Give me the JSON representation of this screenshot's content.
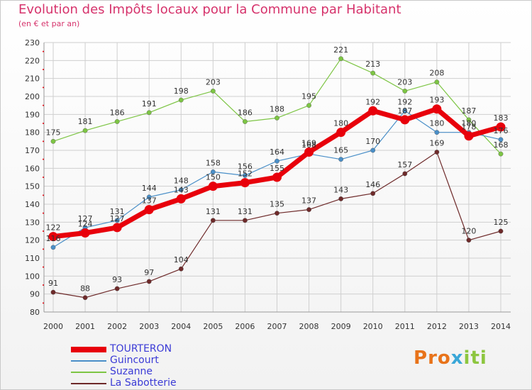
{
  "header": {
    "title": "Evolution des Impôts locaux pour la Commune par Habitant",
    "subtitle": "(en € et par an)"
  },
  "logo": {
    "text": "Proxiti",
    "colors": [
      "#e8731a",
      "#3aa7d8",
      "#8dc63f"
    ]
  },
  "colors": {
    "title": "#d6336c",
    "legend_text": "#3b3bd6",
    "grid": "#cfcfcf"
  },
  "chart_data": {
    "type": "line",
    "title": "Evolution des Impôts locaux pour la Commune par Habitant",
    "subtitle": "(en € et par an)",
    "xlabel": "",
    "ylabel": "",
    "ylim": [
      80,
      230
    ],
    "yticks": [
      80,
      90,
      100,
      110,
      120,
      130,
      140,
      150,
      160,
      170,
      180,
      190,
      200,
      210,
      220,
      230
    ],
    "grid": true,
    "legend_position": "bottom-left",
    "x": [
      "2000",
      "2001",
      "2002",
      "2003",
      "2004",
      "2005",
      "2006",
      "2007",
      "2008",
      "2009",
      "2010",
      "2011",
      "2012",
      "2013",
      "2014"
    ],
    "series": [
      {
        "name": "TOURTERON",
        "color": "#e8000b",
        "values": [
          122,
          124,
          127,
          137,
          143,
          150,
          152,
          155,
          169,
          180,
          192,
          187,
          193,
          178,
          183
        ]
      },
      {
        "name": "Guincourt",
        "color": "#4a8fc8",
        "values": [
          116,
          127,
          131,
          144,
          148,
          158,
          156,
          164,
          168,
          165,
          170,
          192,
          180,
          180,
          176
        ]
      },
      {
        "name": "Suzanne",
        "color": "#7dc544",
        "values": [
          175,
          181,
          186,
          191,
          198,
          203,
          186,
          188,
          195,
          221,
          213,
          203,
          208,
          187,
          168
        ]
      },
      {
        "name": "La Sabotterie",
        "color": "#6e2a2a",
        "values": [
          91,
          88,
          93,
          97,
          104,
          131,
          131,
          135,
          137,
          143,
          146,
          157,
          169,
          120,
          125
        ]
      }
    ],
    "data_labels": [
      {
        "series": "TOURTERON",
        "labels": [
          "122",
          "124",
          "127",
          "137",
          "143",
          "150",
          "152",
          "155",
          "169",
          "180",
          "192",
          "187",
          "193",
          "178",
          "183"
        ]
      },
      {
        "series": "Guincourt",
        "labels": [
          "116",
          "127",
          "131",
          "144",
          "148",
          "158",
          "156",
          "164",
          "168",
          "165",
          "170",
          "192",
          "180",
          "180",
          "176"
        ]
      },
      {
        "series": "Suzanne",
        "labels": [
          "175",
          "181",
          "186",
          "191",
          "198",
          "203",
          "186",
          "188",
          "195",
          "221",
          "213",
          "203",
          "208",
          "187",
          "168"
        ]
      },
      {
        "series": "La Sabotterie",
        "labels": [
          "91",
          "88",
          "93",
          "97",
          "104",
          "131",
          "131",
          "135",
          "137",
          "143",
          "146",
          "157",
          "169",
          "120",
          "125"
        ]
      }
    ]
  }
}
